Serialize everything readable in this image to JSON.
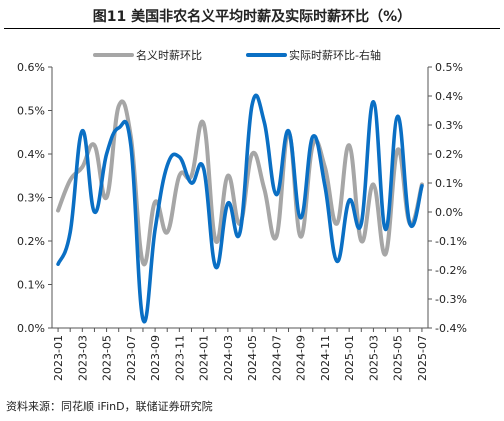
{
  "chart_data": {
    "type": "line",
    "title": "图11 美国非农名义平均时薪及实际时薪环比（%）",
    "source": "资料来源：同花顺 iFinD，联储证券研究院",
    "x": [
      "2023-01",
      "2023-02",
      "2023-03",
      "2023-04",
      "2023-05",
      "2023-06",
      "2023-07",
      "2023-08",
      "2023-09",
      "2023-10",
      "2023-11",
      "2023-12",
      "2024-01",
      "2024-02",
      "2024-03",
      "2024-04",
      "2024-05",
      "2024-06",
      "2024-07",
      "2024-08",
      "2024-09",
      "2024-10",
      "2024-11",
      "2024-12",
      "2025-01",
      "2025-02",
      "2025-03",
      "2025-04",
      "2025-05",
      "2025-06",
      "2025-07"
    ],
    "x_tick_labels": [
      "2023-01",
      "2023-03",
      "2023-05",
      "2023-07",
      "2023-09",
      "2023-11",
      "2024-01",
      "2024-03",
      "2024-05",
      "2024-07",
      "2024-09",
      "2024-11",
      "2025-01",
      "2025-03",
      "2025-05",
      "2025-07"
    ],
    "y_left": {
      "min": 0.0,
      "max": 0.6,
      "step": 0.1,
      "tick_labels": [
        "0.0%",
        "0.1%",
        "0.2%",
        "0.3%",
        "0.4%",
        "0.5%",
        "0.6%"
      ]
    },
    "y_right": {
      "min": -0.4,
      "max": 0.5,
      "step": 0.1,
      "tick_labels": [
        "-0.4%",
        "-0.3%",
        "-0.2%",
        "-0.1%",
        "0.0%",
        "0.1%",
        "0.2%",
        "0.3%",
        "0.4%",
        "0.5%"
      ]
    },
    "legend_position": "top",
    "series": [
      {
        "name": "名义时薪环比",
        "axis": "left",
        "color": "#a6a6a6",
        "values": [
          0.27,
          0.34,
          0.37,
          0.42,
          0.3,
          0.51,
          0.44,
          0.15,
          0.29,
          0.22,
          0.35,
          0.35,
          0.47,
          0.2,
          0.35,
          0.24,
          0.4,
          0.32,
          0.21,
          0.45,
          0.21,
          0.42,
          0.37,
          0.24,
          0.42,
          0.2,
          0.33,
          0.17,
          0.41,
          0.24,
          0.33
        ]
      },
      {
        "name": "实际时薪环比-右轴",
        "axis": "right",
        "color": "#0a6fc4",
        "values": [
          -0.18,
          -0.07,
          0.28,
          0.0,
          0.2,
          0.29,
          0.23,
          -0.37,
          -0.06,
          0.16,
          0.19,
          0.1,
          0.15,
          -0.19,
          0.03,
          -0.07,
          0.37,
          0.31,
          0.06,
          0.28,
          -0.02,
          0.26,
          0.09,
          -0.17,
          0.04,
          -0.04,
          0.38,
          -0.06,
          0.33,
          -0.04,
          0.09
        ]
      }
    ]
  }
}
